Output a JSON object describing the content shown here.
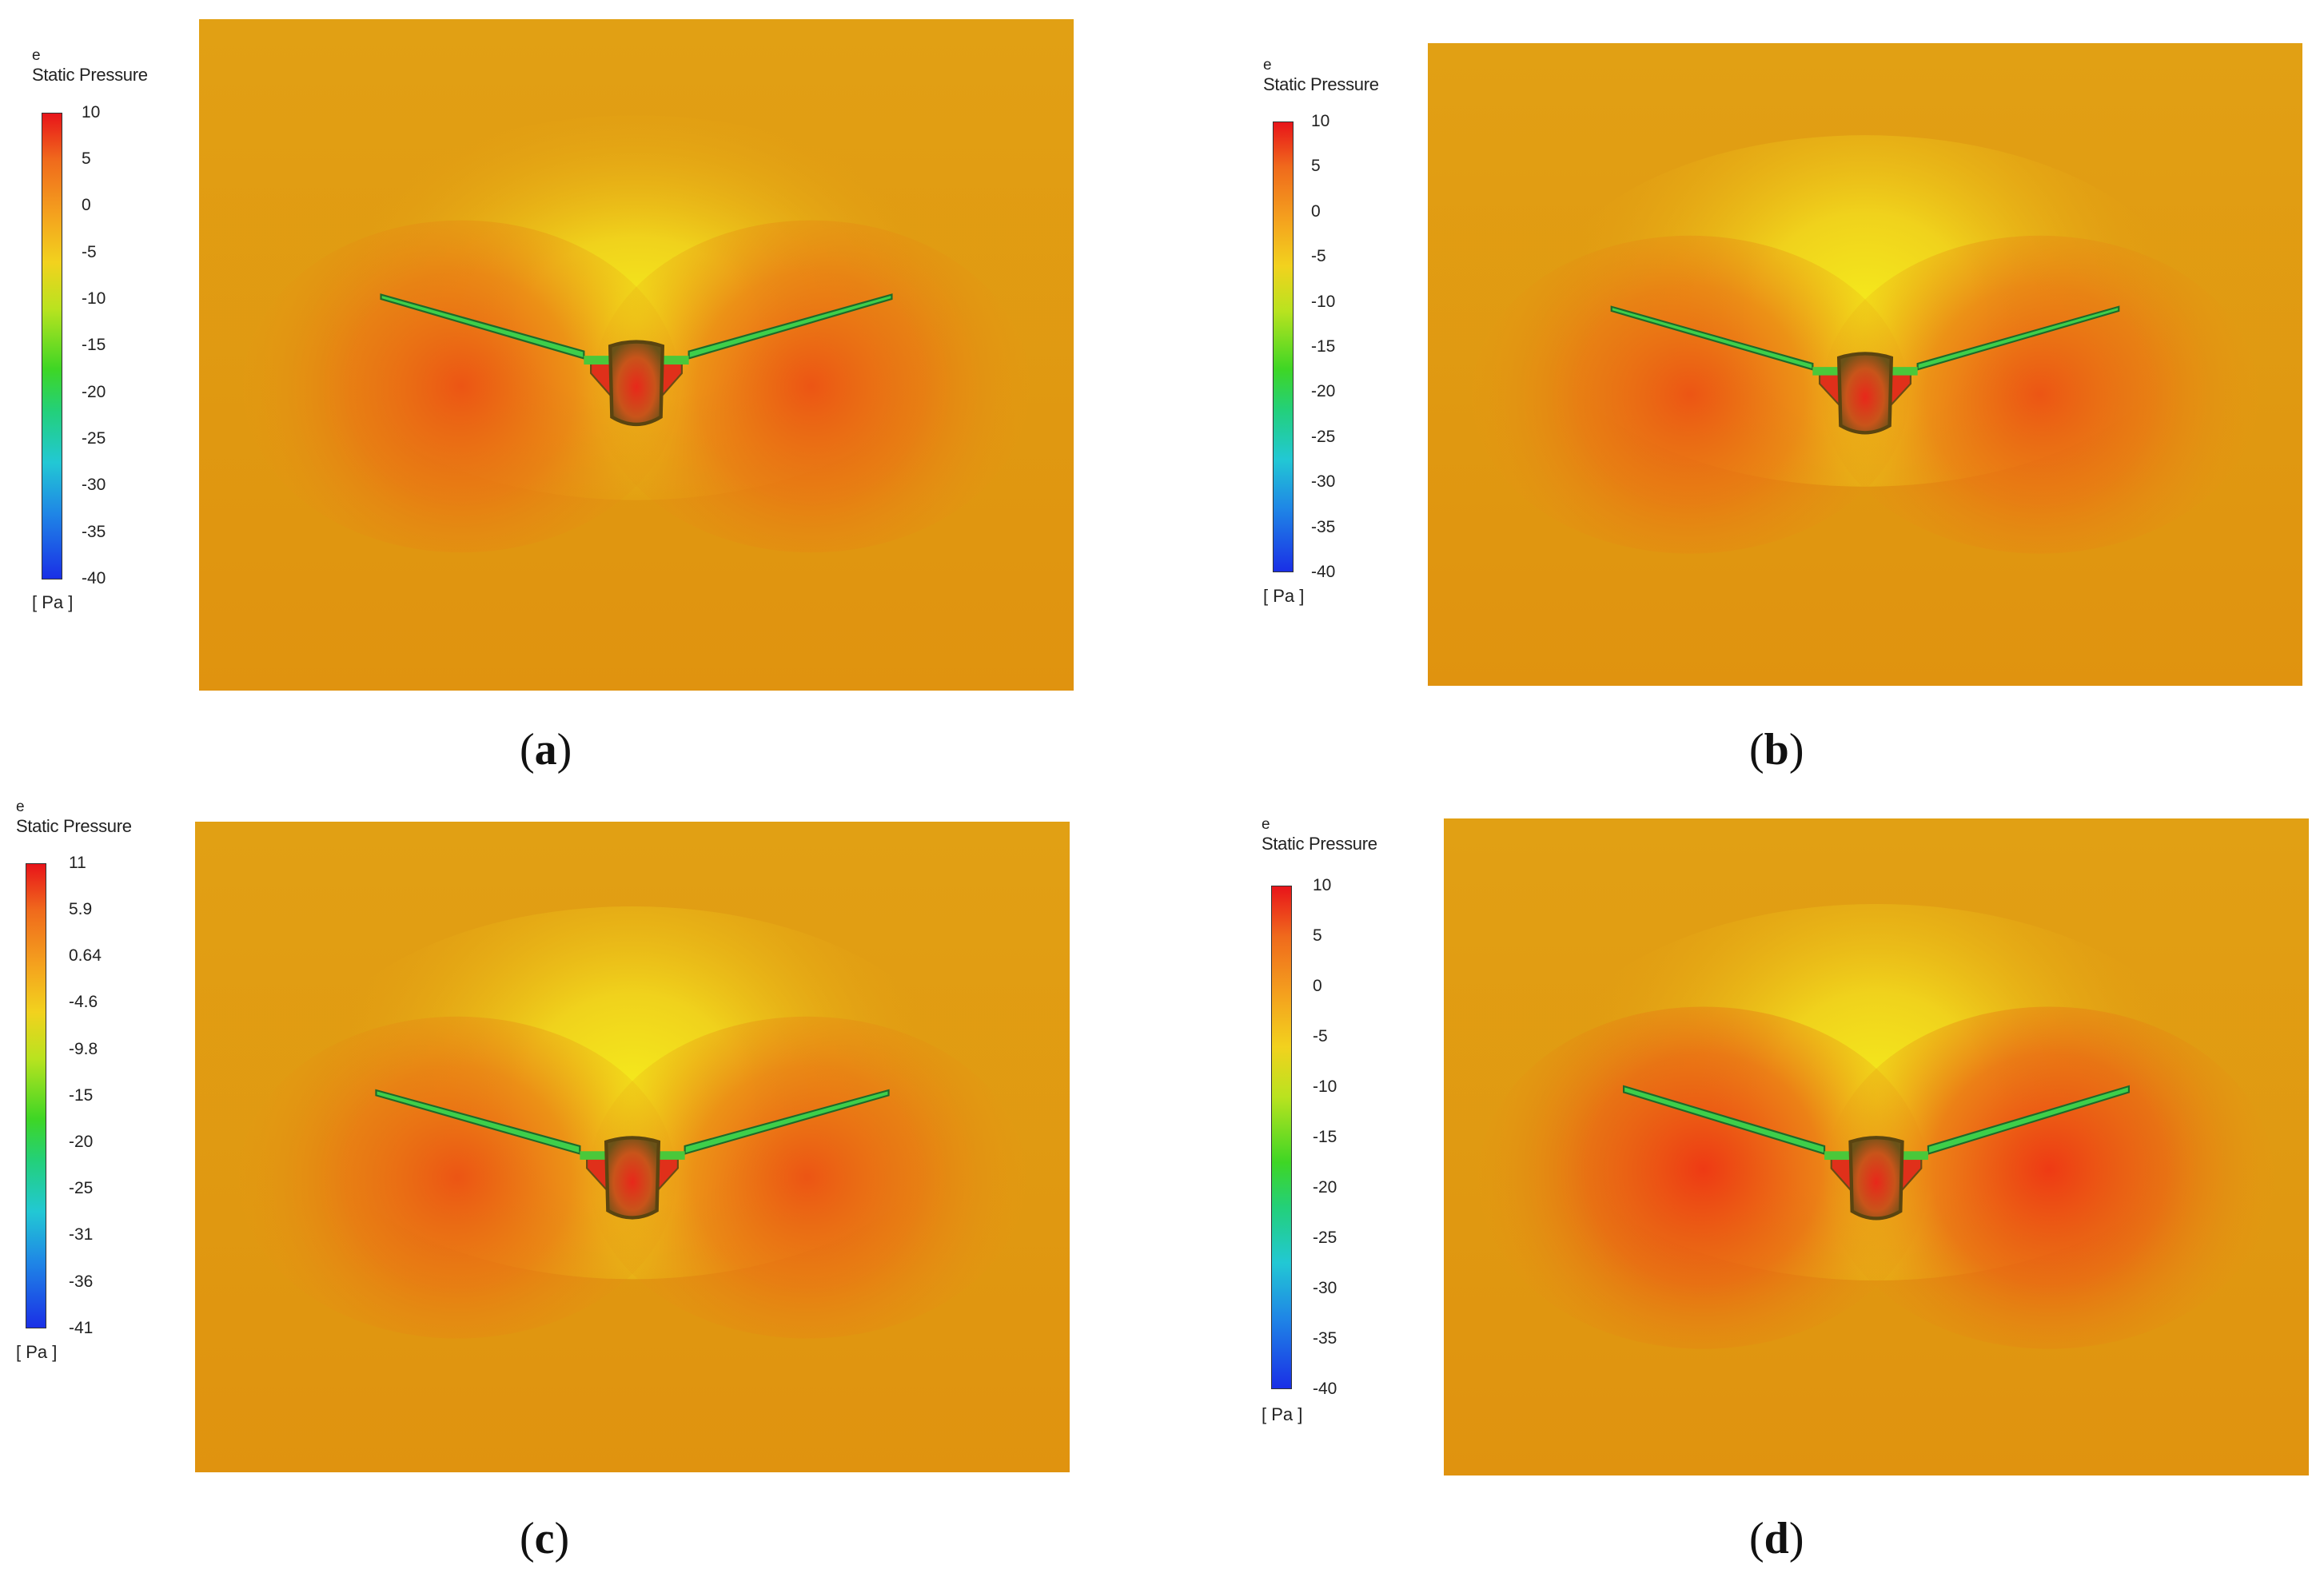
{
  "panels": [
    {
      "id": "a",
      "legend": {
        "variable": "e",
        "title": "Static Pressure",
        "unit": "[ Pa ]",
        "ticks": [
          "10",
          "5",
          "0",
          "-5",
          "-10",
          "-15",
          "-20",
          "-25",
          "-30",
          "-35",
          "-40"
        ]
      },
      "caption": {
        "open": "(",
        "letter": "a",
        "close": ")"
      }
    },
    {
      "id": "b",
      "legend": {
        "variable": "e",
        "title": "Static Pressure",
        "unit": "[ Pa ]",
        "ticks": [
          "10",
          "5",
          "0",
          "-5",
          "-10",
          "-15",
          "-20",
          "-25",
          "-30",
          "-35",
          "-40"
        ]
      },
      "caption": {
        "open": "(",
        "letter": "b",
        "close": ")"
      }
    },
    {
      "id": "c",
      "legend": {
        "variable": "e",
        "title": "Static Pressure",
        "unit": "[ Pa ]",
        "ticks": [
          "11",
          "5.9",
          "0.64",
          "-4.6",
          "-9.8",
          "-15",
          "-20",
          "-25",
          "-31",
          "-36",
          "-41"
        ]
      },
      "caption": {
        "open": "(",
        "letter": "c",
        "close": ")"
      }
    },
    {
      "id": "d",
      "legend": {
        "variable": "e",
        "title": "Static Pressure",
        "unit": "[ Pa ]",
        "ticks": [
          "10",
          "5",
          "0",
          "-5",
          "-10",
          "-15",
          "-20",
          "-25",
          "-30",
          "-35",
          "-40"
        ]
      },
      "caption": {
        "open": "(",
        "letter": "d",
        "close": ")"
      }
    }
  ],
  "colors": {
    "background_field": "#e39a12",
    "low_pressure_above": "#f2e21a",
    "high_pressure_below": "#ee4a14",
    "wing_edge": "#3cc84a",
    "fuselage": "#7a5a16"
  }
}
